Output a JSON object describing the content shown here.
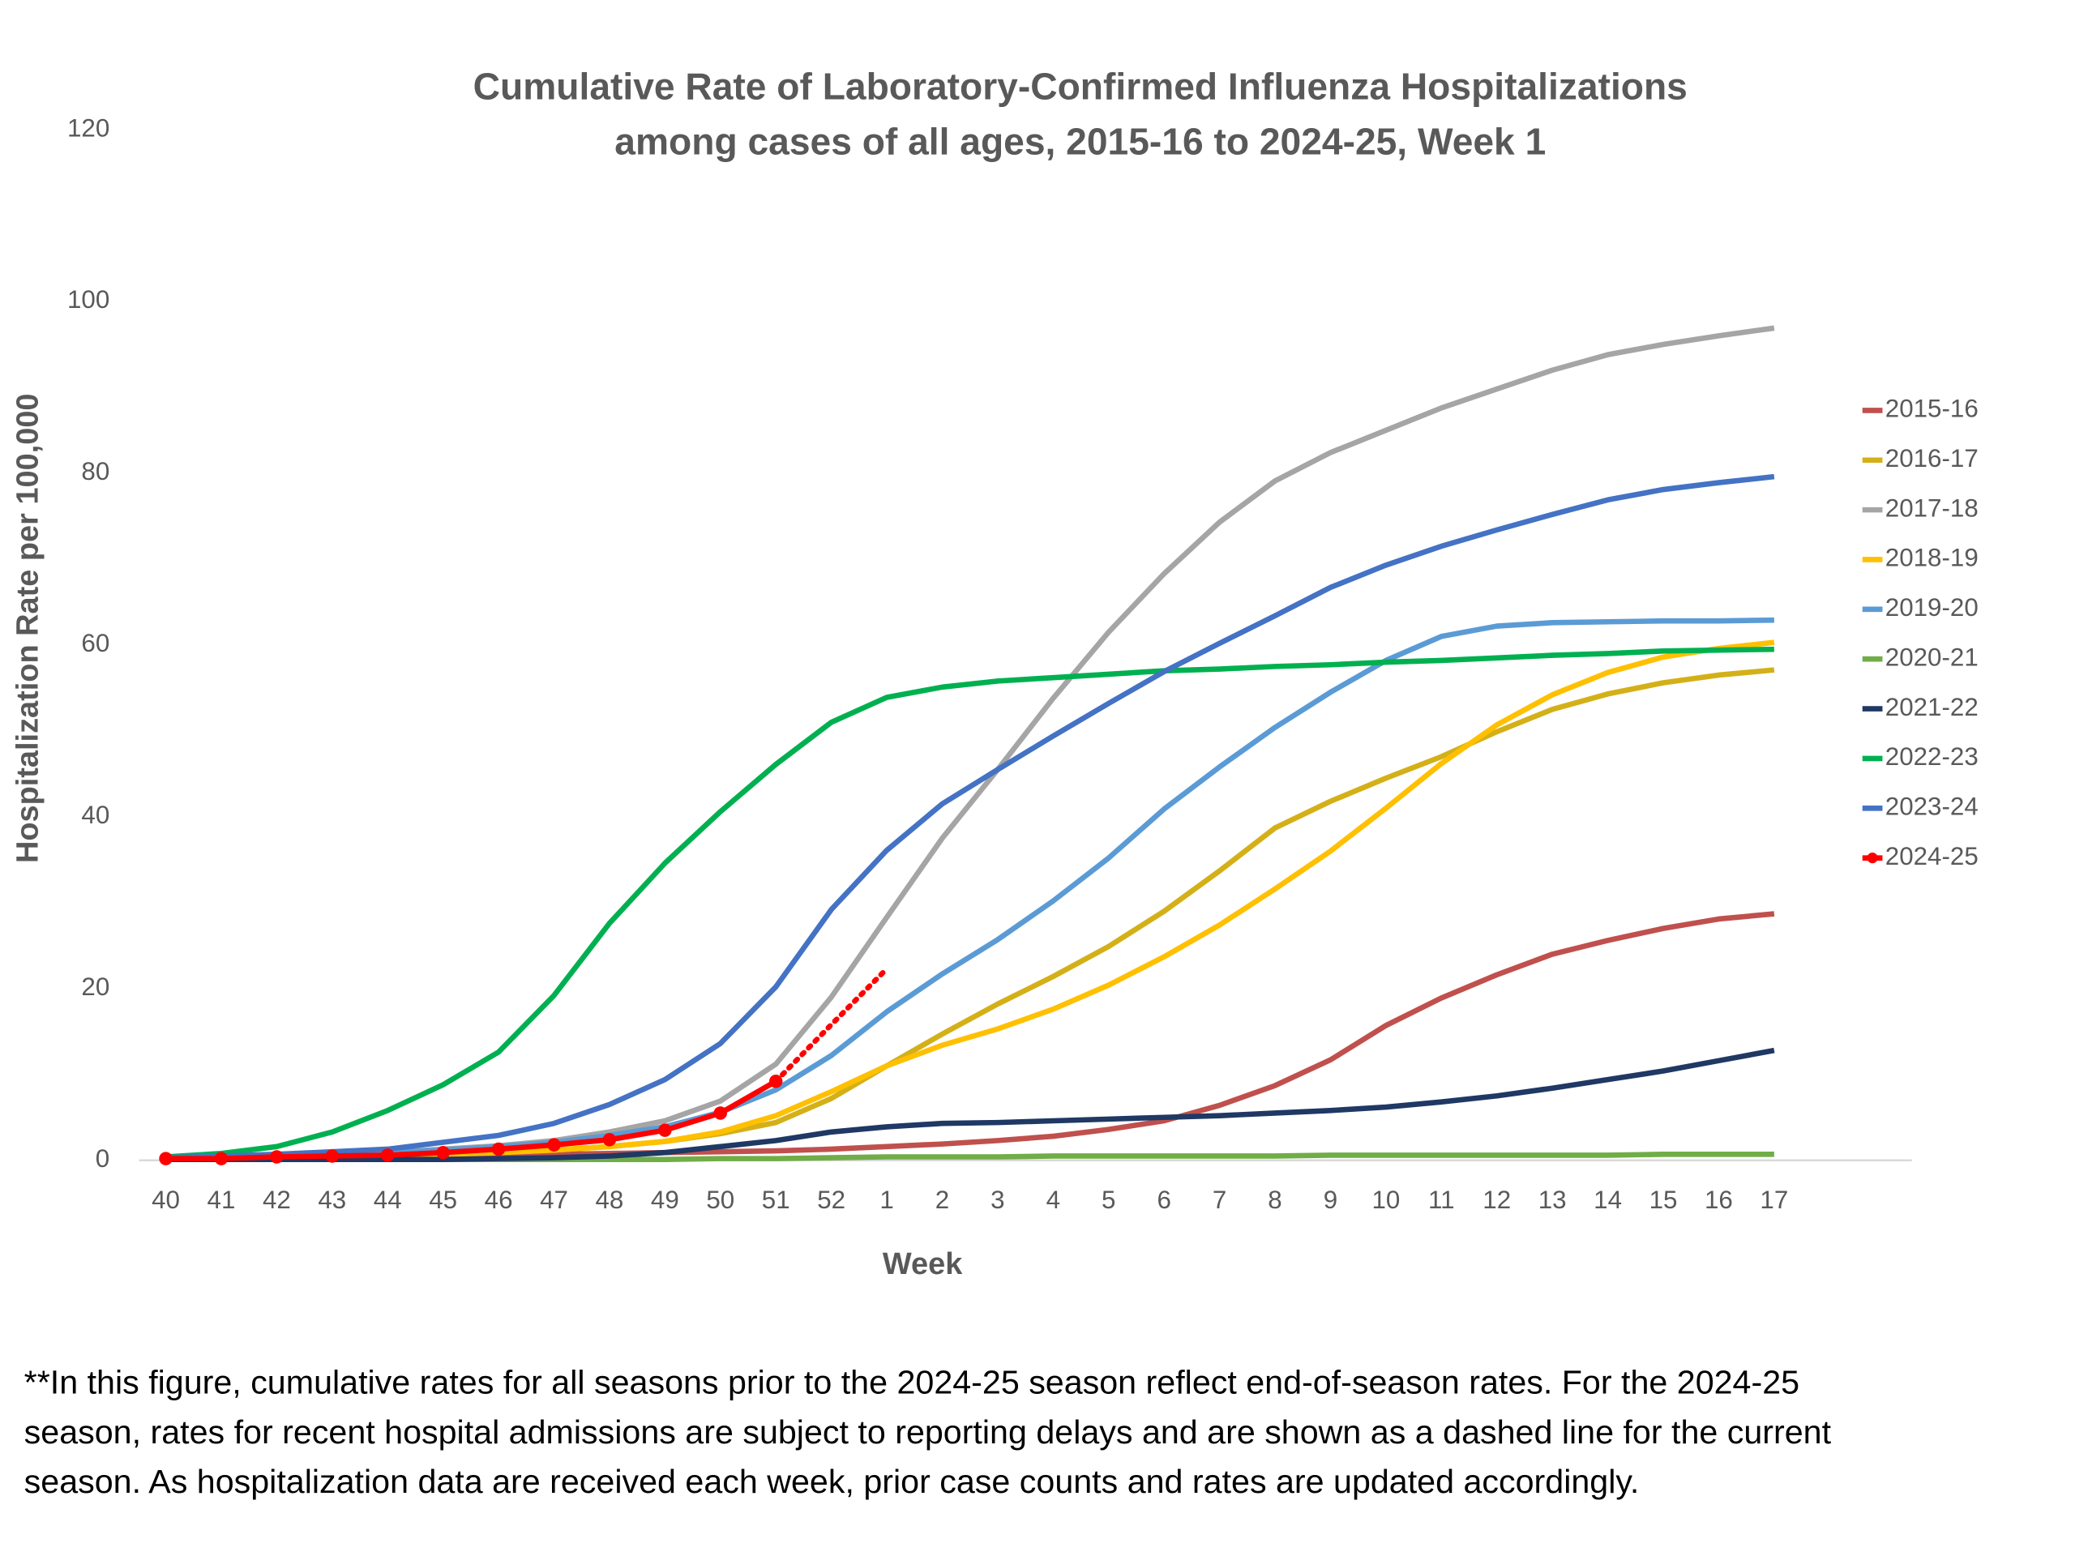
{
  "chart_data": {
    "type": "line",
    "title": [
      "Cumulative Rate of Laboratory-Confirmed Influenza Hospitalizations",
      "among cases of all ages, 2015-16 to 2024-25, Week 1"
    ],
    "x_label": "Week",
    "y_label": "Hospitalization Rate per 100,000",
    "categories": [
      "40",
      "41",
      "42",
      "43",
      "44",
      "45",
      "46",
      "47",
      "48",
      "49",
      "50",
      "51",
      "52",
      "1",
      "2",
      "3",
      "4",
      "5",
      "6",
      "7",
      "8",
      "9",
      "10",
      "11",
      "12",
      "13",
      "14",
      "15",
      "16",
      "17"
    ],
    "ylim": [
      0,
      120
    ],
    "yticks": [
      0,
      20,
      40,
      60,
      80,
      100,
      120
    ],
    "legend": "right",
    "series": [
      {
        "name": "2015-16",
        "color": "#c0504d",
        "values": [
          0.2,
          0.2,
          0.3,
          0.3,
          0.4,
          0.5,
          0.6,
          0.7,
          0.8,
          0.9,
          1.0,
          1.1,
          1.3,
          1.6,
          1.9,
          2.3,
          2.8,
          3.6,
          4.6,
          6.4,
          8.7,
          11.7,
          15.7,
          18.9,
          21.6,
          24.0,
          25.6,
          27.0,
          28.1,
          28.7
        ]
      },
      {
        "name": "2016-17",
        "color": "#d4b018",
        "values": [
          0.2,
          0.2,
          0.3,
          0.4,
          0.5,
          0.7,
          0.9,
          1.2,
          1.6,
          2.2,
          3.1,
          4.4,
          7.2,
          11.0,
          14.7,
          18.2,
          21.4,
          24.9,
          29.0,
          33.7,
          38.7,
          41.8,
          44.5,
          47.0,
          49.9,
          52.5,
          54.3,
          55.6,
          56.5,
          57.1
        ]
      },
      {
        "name": "2017-18",
        "color": "#a5a5a5",
        "values": [
          0.2,
          0.3,
          0.4,
          0.6,
          0.9,
          1.3,
          1.7,
          2.3,
          3.3,
          4.6,
          6.9,
          11.2,
          19.0,
          28.3,
          37.5,
          45.5,
          53.8,
          61.5,
          68.3,
          74.3,
          79.1,
          82.4,
          85.0,
          87.6,
          89.8,
          92.0,
          93.8,
          95.0,
          96.0,
          96.9
        ]
      },
      {
        "name": "2018-19",
        "color": "#ffc000",
        "values": [
          0.1,
          0.2,
          0.3,
          0.4,
          0.5,
          0.7,
          0.9,
          1.2,
          1.6,
          2.2,
          3.3,
          5.2,
          8.0,
          11.0,
          13.4,
          15.3,
          17.6,
          20.4,
          23.7,
          27.4,
          31.6,
          36.0,
          41.0,
          46.2,
          50.7,
          54.2,
          56.8,
          58.6,
          59.6,
          60.3
        ]
      },
      {
        "name": "2019-20",
        "color": "#5b9bd5",
        "values": [
          0.3,
          0.4,
          0.5,
          0.7,
          0.9,
          1.2,
          1.6,
          2.1,
          2.9,
          3.9,
          5.6,
          8.2,
          12.2,
          17.3,
          21.7,
          25.7,
          30.2,
          35.2,
          40.9,
          45.8,
          50.4,
          54.5,
          58.2,
          61.0,
          62.2,
          62.6,
          62.7,
          62.8,
          62.8,
          62.9
        ]
      },
      {
        "name": "2020-21",
        "color": "#70ad47",
        "values": [
          0.1,
          0.1,
          0.1,
          0.1,
          0.1,
          0.1,
          0.1,
          0.1,
          0.1,
          0.1,
          0.2,
          0.2,
          0.3,
          0.4,
          0.4,
          0.4,
          0.5,
          0.5,
          0.5,
          0.5,
          0.5,
          0.6,
          0.6,
          0.6,
          0.6,
          0.6,
          0.6,
          0.7,
          0.7,
          0.7
        ]
      },
      {
        "name": "2021-22",
        "color": "#1f3864",
        "values": [
          0.1,
          0.1,
          0.1,
          0.1,
          0.1,
          0.1,
          0.2,
          0.3,
          0.5,
          0.9,
          1.6,
          2.3,
          3.3,
          3.9,
          4.3,
          4.4,
          4.6,
          4.8,
          5.0,
          5.2,
          5.5,
          5.8,
          6.2,
          6.8,
          7.5,
          8.4,
          9.4,
          10.4,
          11.6,
          12.8
        ]
      },
      {
        "name": "2022-23",
        "color": "#00b050",
        "values": [
          0.4,
          0.8,
          1.6,
          3.3,
          5.8,
          8.8,
          12.6,
          19.2,
          27.6,
          34.6,
          40.6,
          46.1,
          51.0,
          53.9,
          55.1,
          55.8,
          56.2,
          56.6,
          57.0,
          57.2,
          57.5,
          57.7,
          58.0,
          58.2,
          58.5,
          58.8,
          59.0,
          59.3,
          59.4,
          59.5
        ]
      },
      {
        "name": "2023-24",
        "color": "#4472c4",
        "values": [
          0.3,
          0.5,
          0.7,
          1.0,
          1.3,
          2.1,
          2.9,
          4.3,
          6.5,
          9.4,
          13.6,
          20.2,
          29.2,
          36.1,
          41.5,
          45.5,
          49.4,
          53.2,
          56.9,
          60.2,
          63.4,
          66.7,
          69.3,
          71.5,
          73.4,
          75.2,
          76.9,
          78.1,
          78.9,
          79.6
        ]
      },
      {
        "name": "2024-25",
        "color": "#ff0000",
        "markers": true,
        "values": [
          0.2,
          0.2,
          0.4,
          0.5,
          0.6,
          0.9,
          1.3,
          1.8,
          2.4,
          3.5,
          5.5,
          9.2,
          null,
          null,
          null,
          null,
          null,
          null,
          null,
          null,
          null,
          null,
          null,
          null,
          null,
          null,
          null,
          null,
          null,
          null
        ],
        "dashed_values": [
          null,
          null,
          null,
          null,
          null,
          null,
          null,
          null,
          null,
          null,
          null,
          9.2,
          15.8,
          22.3,
          null,
          null,
          null,
          null,
          null,
          null,
          null,
          null,
          null,
          null,
          null,
          null,
          null,
          null,
          null,
          null
        ]
      }
    ],
    "footnote": [
      "**In this figure, cumulative rates for all seasons prior to the 2024-25 season reflect end-of-season rates. For the 2024-25",
      "season, rates for recent hospital admissions are subject to reporting delays and are shown as a dashed line for the current",
      "season. As hospitalization data are received each week, prior case counts and rates are updated accordingly."
    ]
  }
}
